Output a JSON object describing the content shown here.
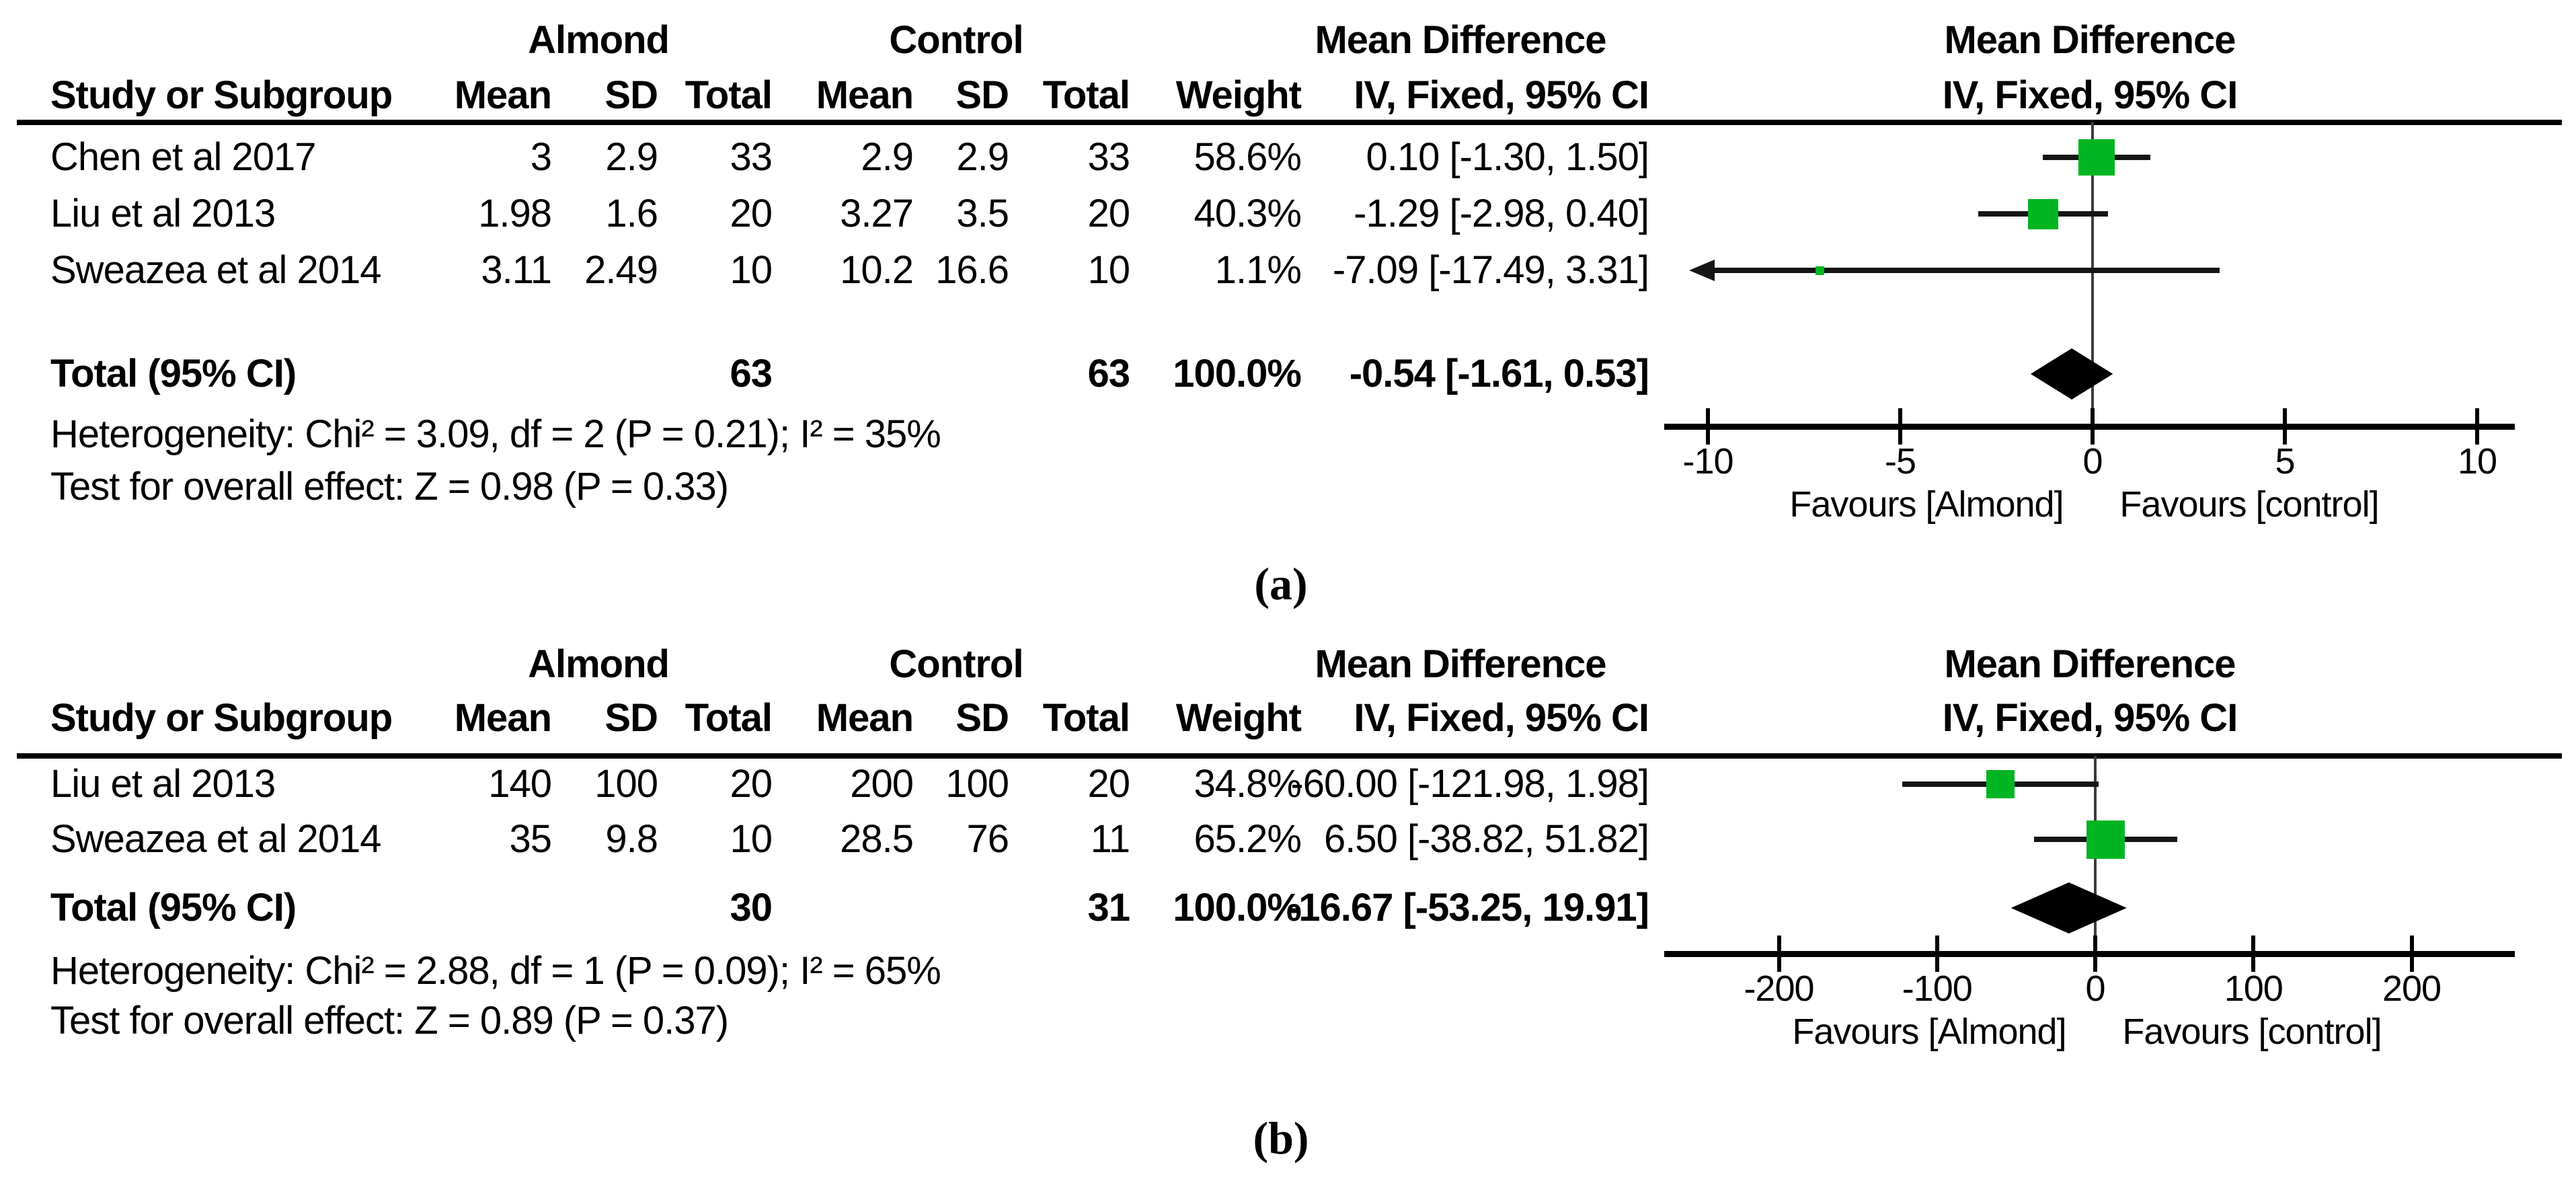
{
  "colors": {
    "background": "#ffffff",
    "square_green": "#00b521",
    "diamond_black": "#000000",
    "ci_line": "#151515",
    "axis_black": "#000000",
    "zero_line_gray": "#3c3c3c",
    "text": "#000000"
  },
  "chart_data": [
    {
      "type": "forest",
      "label": "(a)",
      "group1": "Almond",
      "group2": "Control",
      "effect_header": "Mean Difference",
      "method_header": "IV, Fixed, 95% CI",
      "columns": [
        "Study or Subgroup",
        "Mean",
        "SD",
        "Total",
        "Mean",
        "SD",
        "Total",
        "Weight",
        "IV, Fixed, 95% CI"
      ],
      "studies": [
        {
          "name": "Chen et al 2017",
          "mean1": "3",
          "sd1": "2.9",
          "total1": "33",
          "mean2": "2.9",
          "sd2": "2.9",
          "total2": "33",
          "weight": "58.6%",
          "md": 0.1,
          "ci_lo": -1.3,
          "ci_hi": 1.5,
          "md_text": "0.10 [-1.30, 1.50]"
        },
        {
          "name": "Liu et al 2013",
          "mean1": "1.98",
          "sd1": "1.6",
          "total1": "20",
          "mean2": "3.27",
          "sd2": "3.5",
          "total2": "20",
          "weight": "40.3%",
          "md": -1.29,
          "ci_lo": -2.98,
          "ci_hi": 0.4,
          "md_text": "-1.29 [-2.98, 0.40]"
        },
        {
          "name": "Sweazea et al 2014",
          "mean1": "3.11",
          "sd1": "2.49",
          "total1": "10",
          "mean2": "10.2",
          "sd2": "16.6",
          "total2": "10",
          "weight": "1.1%",
          "md": -7.09,
          "ci_lo": -17.49,
          "ci_hi": 3.31,
          "md_text": "-7.09 [-17.49, 3.31]"
        }
      ],
      "total_row": {
        "label": "Total (95% CI)",
        "total1": "63",
        "total2": "63",
        "weight": "100.0%",
        "md": -0.54,
        "ci_lo": -1.61,
        "ci_hi": 0.53,
        "md_text": "-0.54 [-1.61, 0.53]"
      },
      "heterogeneity": "Heterogeneity: Chi² = 3.09, df = 2 (P = 0.21); I² = 35%",
      "overall_effect": "Test for overall effect: Z = 0.98 (P = 0.33)",
      "axis": {
        "min": -10,
        "max": 10,
        "ticks": [
          "-10",
          "-5",
          "0",
          "5",
          "10"
        ],
        "favours_left": "Favours [Almond]",
        "favours_right": "Favours [control]"
      }
    },
    {
      "type": "forest",
      "label": "(b)",
      "group1": "Almond",
      "group2": "Control",
      "effect_header": "Mean Difference",
      "method_header": "IV, Fixed, 95% CI",
      "columns": [
        "Study or Subgroup",
        "Mean",
        "SD",
        "Total",
        "Mean",
        "SD",
        "Total",
        "Weight",
        "IV, Fixed, 95% CI"
      ],
      "studies": [
        {
          "name": "Liu et al 2013",
          "mean1": "140",
          "sd1": "100",
          "total1": "20",
          "mean2": "200",
          "sd2": "100",
          "total2": "20",
          "weight": "34.8%",
          "md": -60.0,
          "ci_lo": -121.98,
          "ci_hi": 1.98,
          "md_text": "-60.00 [-121.98, 1.98]"
        },
        {
          "name": "Sweazea et al 2014",
          "mean1": "35",
          "sd1": "9.8",
          "total1": "10",
          "mean2": "28.5",
          "sd2": "76",
          "total2": "11",
          "weight": "65.2%",
          "md": 6.5,
          "ci_lo": -38.82,
          "ci_hi": 51.82,
          "md_text": "6.50 [-38.82, 51.82]"
        }
      ],
      "total_row": {
        "label": "Total (95% CI)",
        "total1": "30",
        "total2": "31",
        "weight": "100.0%",
        "md": -16.67,
        "ci_lo": -53.25,
        "ci_hi": 19.91,
        "md_text": "-16.67 [-53.25, 19.91]"
      },
      "heterogeneity": "Heterogeneity: Chi² = 2.88, df = 1 (P = 0.09); I² = 65%",
      "overall_effect": "Test for overall effect: Z = 0.89 (P = 0.37)",
      "axis": {
        "min": -200,
        "max": 200,
        "ticks": [
          "-200",
          "-100",
          "0",
          "100",
          "200"
        ],
        "favours_left": "Favours [Almond]",
        "favours_right": "Favours [control]"
      }
    }
  ]
}
